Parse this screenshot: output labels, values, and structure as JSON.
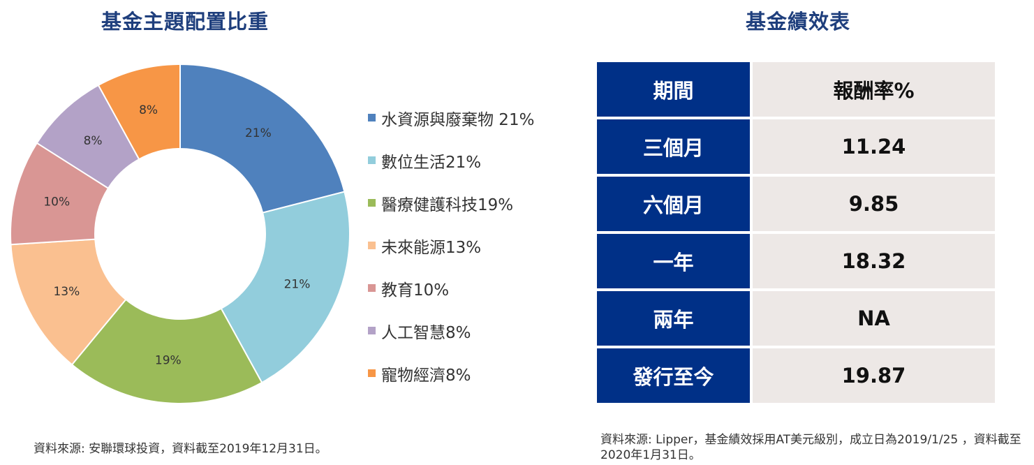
{
  "left": {
    "title": "基金主題配置比重",
    "source": "資料來源: 安聯環球投資，資料截至2019年12月31日。"
  },
  "chart_data": {
    "type": "pie",
    "categories": [
      "水資源與廢棄物",
      "數位生活",
      "醫療健護科技",
      "未來能源",
      "教育",
      "人工智慧",
      "寵物經濟"
    ],
    "values": [
      21,
      21,
      19,
      13,
      10,
      8,
      8
    ],
    "data_labels": [
      "21%",
      "21%",
      "19%",
      "13%",
      "10%",
      "8%",
      "8%"
    ],
    "legend_labels": [
      "水資源與廢棄物 21%",
      "數位生活21%",
      "醫療健護科技19%",
      "未來能源13%",
      "教育10%",
      "人工智慧8%",
      "寵物經濟8%"
    ],
    "colors": [
      "#4f81bd",
      "#92cddc",
      "#9bbb59",
      "#fac090",
      "#d99694",
      "#b3a2c7",
      "#f79646"
    ],
    "legend_position": "right",
    "donut": true
  },
  "right": {
    "title": "基金績效表",
    "header": {
      "period": "期間",
      "return": "報酬率%"
    },
    "rows": [
      {
        "period": "三個月",
        "return": "11.24"
      },
      {
        "period": "六個月",
        "return": "9.85"
      },
      {
        "period": "一年",
        "return": "18.32"
      },
      {
        "period": "兩年",
        "return": "NA"
      },
      {
        "period": "發行至今",
        "return": "19.87"
      }
    ],
    "source": "資料來源: Lipper，基金績效採用AT美元級別，成立日為2019/1/25 ，資料截至2020年1月31日。"
  },
  "colors": {
    "title": "#1f3f7d",
    "table_header_bg": "#003087",
    "table_value_bg": "#ede8e6"
  }
}
